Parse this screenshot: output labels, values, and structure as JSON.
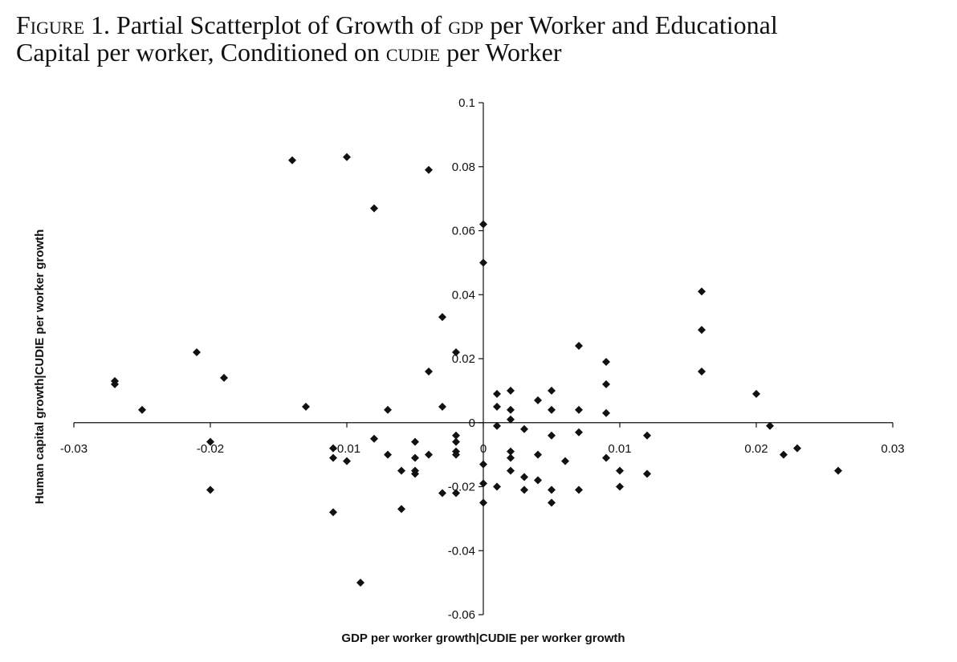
{
  "caption": {
    "label": "Figure",
    "number": "1.",
    "line1": {
      "a": "Partial Scatterplot of Growth of",
      "b": "gdp",
      "c": "per Worker and Educational"
    },
    "line2": {
      "a": "Capital per worker, Conditioned on",
      "b": "cudie",
      "c": "per Worker"
    }
  },
  "chart_data": {
    "type": "scatter",
    "xlabel": "GDP per worker growth|CUDIE per worker growth",
    "ylabel": "Human capital growth|CUDIE per worker growth",
    "xlim": [
      -0.03,
      0.03
    ],
    "ylim": [
      -0.06,
      0.1
    ],
    "x_ticks": [
      -0.03,
      -0.02,
      -0.01,
      0,
      0.01,
      0.02,
      0.03
    ],
    "x_tick_labels": [
      "-0.03",
      "-0.02",
      "-0.01",
      "0",
      "0.01",
      "0.02",
      "0.03"
    ],
    "y_ticks": [
      -0.06,
      -0.04,
      -0.02,
      0,
      0.02,
      0.04,
      0.06,
      0.08,
      0.1
    ],
    "y_tick_labels": [
      "-0.06",
      "-0.04",
      "-0.02",
      "0",
      "0.02",
      "0.04",
      "0.06",
      "0.08",
      "0.1"
    ],
    "grid": false,
    "marker": "diamond",
    "marker_color": "#111111",
    "points": [
      [
        -0.027,
        0.013
      ],
      [
        -0.027,
        0.012
      ],
      [
        -0.025,
        0.004
      ],
      [
        -0.021,
        0.022
      ],
      [
        -0.02,
        -0.006
      ],
      [
        -0.02,
        -0.021
      ],
      [
        -0.019,
        0.014
      ],
      [
        -0.014,
        0.082
      ],
      [
        -0.013,
        0.005
      ],
      [
        -0.011,
        -0.008
      ],
      [
        -0.011,
        -0.011
      ],
      [
        -0.011,
        -0.028
      ],
      [
        -0.01,
        0.083
      ],
      [
        -0.01,
        -0.012
      ],
      [
        -0.009,
        -0.05
      ],
      [
        -0.008,
        0.067
      ],
      [
        -0.008,
        -0.005
      ],
      [
        -0.007,
        0.004
      ],
      [
        -0.007,
        -0.01
      ],
      [
        -0.006,
        -0.015
      ],
      [
        -0.006,
        -0.027
      ],
      [
        -0.005,
        -0.006
      ],
      [
        -0.005,
        -0.011
      ],
      [
        -0.005,
        -0.015
      ],
      [
        -0.005,
        -0.016
      ],
      [
        -0.004,
        0.079
      ],
      [
        -0.004,
        0.016
      ],
      [
        -0.004,
        -0.01
      ],
      [
        -0.003,
        0.033
      ],
      [
        -0.003,
        0.005
      ],
      [
        -0.003,
        -0.022
      ],
      [
        -0.002,
        0.022
      ],
      [
        -0.002,
        -0.004
      ],
      [
        -0.002,
        -0.006
      ],
      [
        -0.002,
        -0.009
      ],
      [
        -0.002,
        -0.01
      ],
      [
        -0.002,
        -0.022
      ],
      [
        0,
        0.062
      ],
      [
        0,
        0.05
      ],
      [
        0,
        -0.013
      ],
      [
        0,
        -0.019
      ],
      [
        0,
        -0.025
      ],
      [
        0.001,
        0.009
      ],
      [
        0.001,
        0.005
      ],
      [
        0.001,
        -0.001
      ],
      [
        0.001,
        -0.02
      ],
      [
        0.002,
        0.01
      ],
      [
        0.002,
        0.004
      ],
      [
        0.002,
        0.001
      ],
      [
        0.002,
        -0.009
      ],
      [
        0.002,
        -0.011
      ],
      [
        0.002,
        -0.015
      ],
      [
        0.003,
        -0.002
      ],
      [
        0.003,
        -0.017
      ],
      [
        0.003,
        -0.021
      ],
      [
        0.004,
        0.007
      ],
      [
        0.004,
        -0.01
      ],
      [
        0.004,
        -0.018
      ],
      [
        0.005,
        0.01
      ],
      [
        0.005,
        0.004
      ],
      [
        0.005,
        -0.004
      ],
      [
        0.005,
        -0.021
      ],
      [
        0.005,
        -0.025
      ],
      [
        0.006,
        -0.012
      ],
      [
        0.007,
        0.024
      ],
      [
        0.007,
        0.004
      ],
      [
        0.007,
        -0.003
      ],
      [
        0.007,
        -0.021
      ],
      [
        0.009,
        0.019
      ],
      [
        0.009,
        0.012
      ],
      [
        0.009,
        0.003
      ],
      [
        0.009,
        -0.011
      ],
      [
        0.01,
        -0.015
      ],
      [
        0.01,
        -0.02
      ],
      [
        0.012,
        -0.004
      ],
      [
        0.012,
        -0.016
      ],
      [
        0.016,
        0.041
      ],
      [
        0.016,
        0.029
      ],
      [
        0.016,
        0.016
      ],
      [
        0.02,
        0.009
      ],
      [
        0.021,
        -0.001
      ],
      [
        0.022,
        -0.01
      ],
      [
        0.023,
        -0.008
      ],
      [
        0.026,
        -0.015
      ]
    ]
  }
}
